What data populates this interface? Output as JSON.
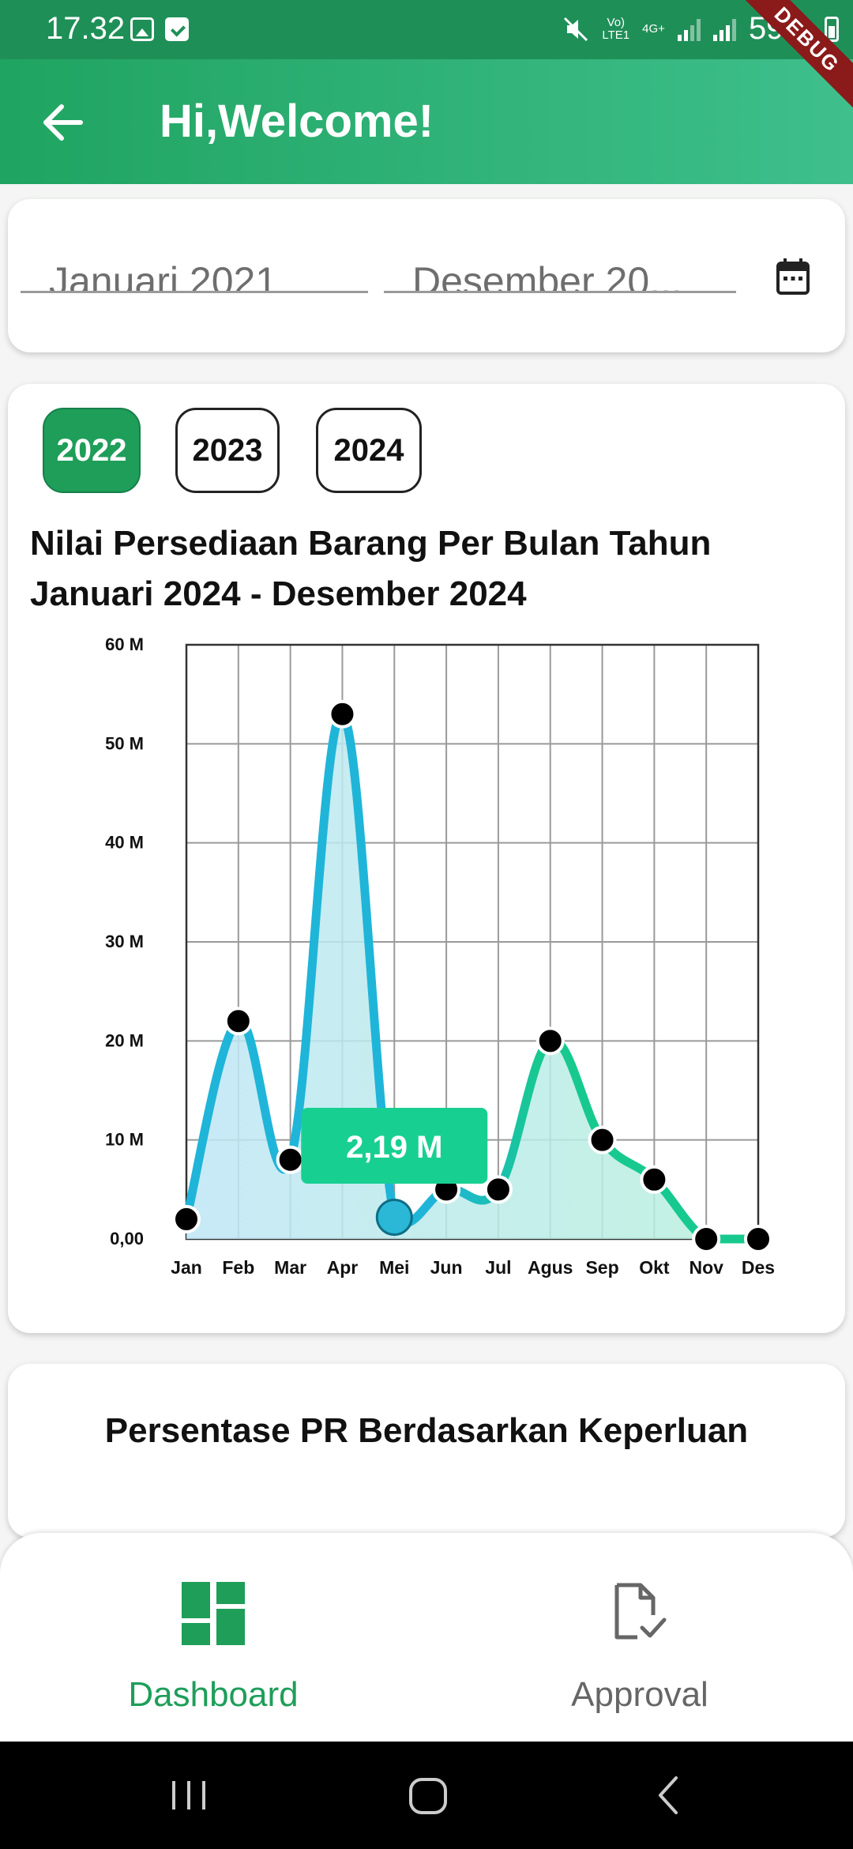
{
  "status_bar": {
    "time": "17.32",
    "net_top": "Vo)",
    "net_bottom": "LTE1",
    "net_type": "4G+",
    "battery": "59%"
  },
  "debug_banner": "DEBUG",
  "header": {
    "title": "Hi,Welcome!"
  },
  "date_range": {
    "from": "Januari 2021",
    "to": "Desember 20..."
  },
  "year_chips": [
    "2022",
    "2023",
    "2024"
  ],
  "selected_year": "2022",
  "chart_title_line1": "Nilai Persediaan Barang Per Bulan Tahun",
  "chart_title_line2": "Januari 2024 - Desember 2024",
  "chart_data": {
    "type": "area",
    "title": "Nilai Persediaan Barang Per Bulan Tahun Januari 2024 - Desember 2024",
    "categories": [
      "Jan",
      "Feb",
      "Mar",
      "Apr",
      "Mei",
      "Jun",
      "Jul",
      "Agus",
      "Sep",
      "Okt",
      "Nov",
      "Des"
    ],
    "values": [
      2.0,
      22.0,
      8.0,
      53.0,
      2.19,
      5.0,
      5.0,
      20.0,
      10.0,
      6.0,
      0.0,
      0.0
    ],
    "value_unit": "M",
    "ylim": [
      0,
      60
    ],
    "yticks": [
      "0,00",
      "10 M",
      "20 M",
      "30 M",
      "40 M",
      "50 M",
      "60 M"
    ],
    "grid": true,
    "tooltip": {
      "category": "Mei",
      "label": "2,19 M"
    },
    "line_colors": [
      "#1fb5d9",
      "#17c98e"
    ]
  },
  "pr_section_title": "Persentase PR Berdasarkan Keperluan",
  "nav": {
    "dashboard": "Dashboard",
    "approval": "Approval"
  }
}
